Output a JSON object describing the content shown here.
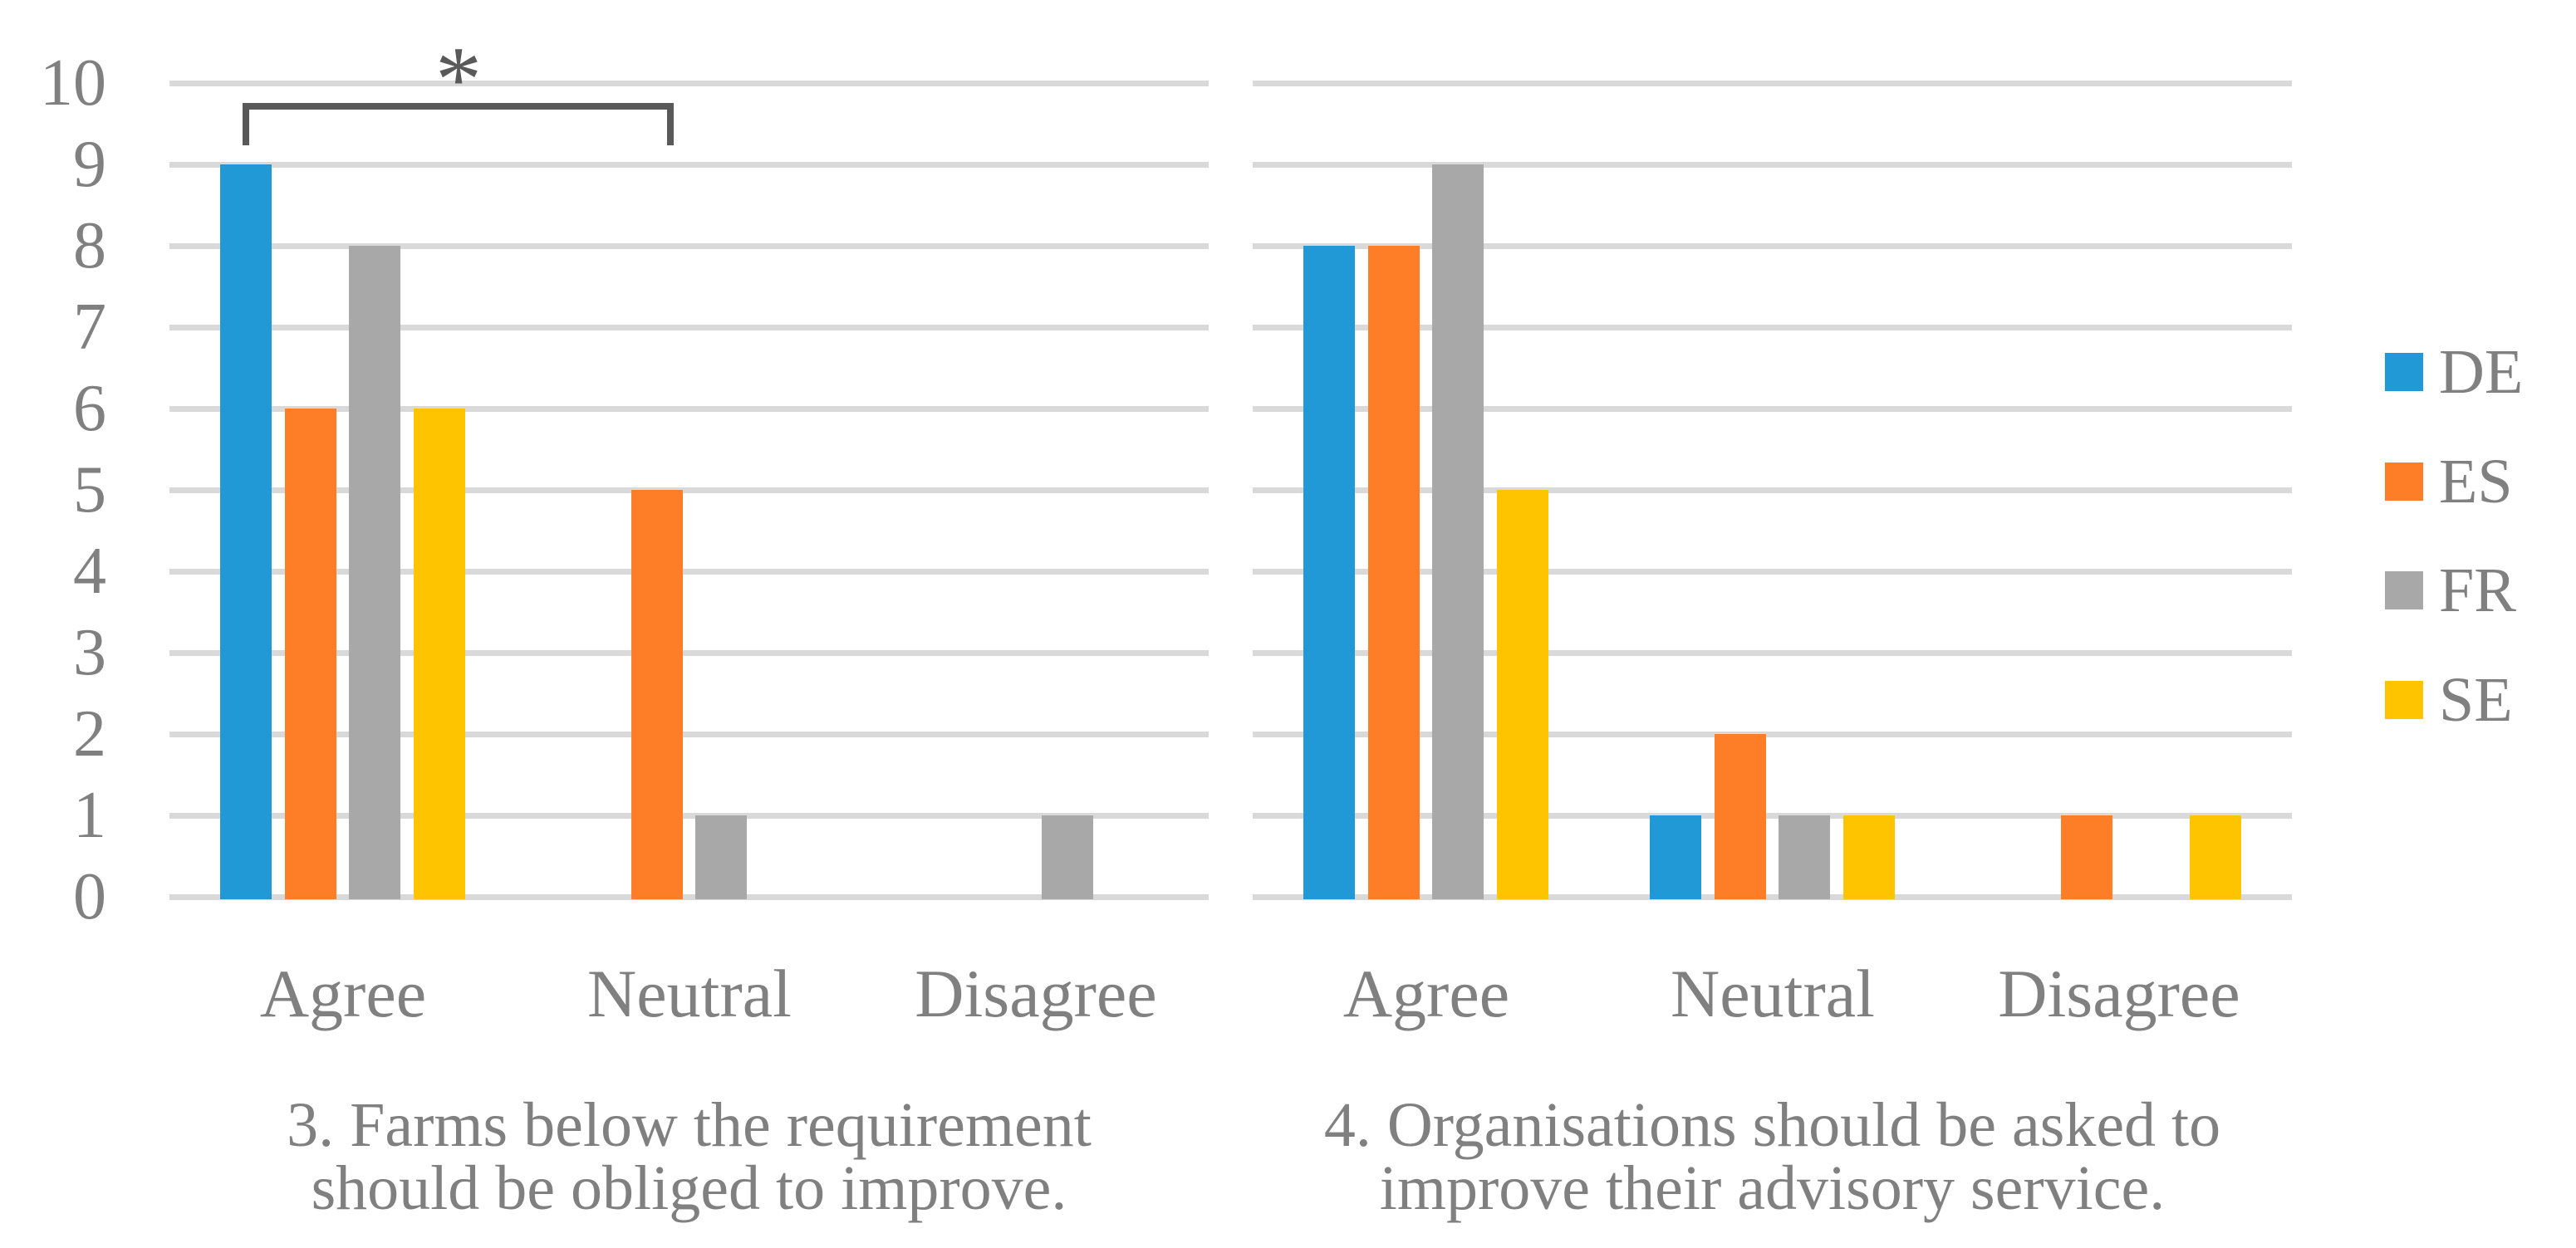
{
  "figure": {
    "background": "#FFFFFF",
    "text_color": "#808080",
    "gridline_color": "#D9D9D9",
    "bracket_color": "#595959"
  },
  "y_axis": {
    "ticks": [
      "0",
      "1",
      "2",
      "3",
      "4",
      "5",
      "6",
      "7",
      "8",
      "9",
      "10"
    ],
    "min": 0,
    "max": 10,
    "step": 1
  },
  "legend": {
    "position": "right",
    "items": [
      {
        "label": "DE",
        "color": "#2199D6"
      },
      {
        "label": "ES",
        "color": "#FD7E27"
      },
      {
        "label": "FR",
        "color": "#A8A8A8"
      },
      {
        "label": "SE",
        "color": "#FFC400"
      }
    ]
  },
  "chart_data": [
    {
      "type": "bar",
      "title": "3. Farms below the requirement should be obliged to improve.",
      "title_lines": [
        "3. Farms below the requirement",
        "should be obliged to improve."
      ],
      "categories": [
        "Agree",
        "Neutral",
        "Disagree"
      ],
      "series": [
        {
          "name": "DE",
          "color": "#2199D6",
          "values": [
            9,
            0,
            0
          ]
        },
        {
          "name": "ES",
          "color": "#FD7E27",
          "values": [
            6,
            5,
            0
          ]
        },
        {
          "name": "FR",
          "color": "#A8A8A8",
          "values": [
            8,
            1,
            1
          ]
        },
        {
          "name": "SE",
          "color": "#FFC400",
          "values": [
            6,
            0,
            0
          ]
        }
      ],
      "ylim": [
        0,
        10
      ],
      "grid": true,
      "annotation": {
        "type": "significance-bracket",
        "label": "*",
        "from": {
          "category": "Agree",
          "series": "DE"
        },
        "to": {
          "category": "Neutral",
          "series": "ES"
        }
      }
    },
    {
      "type": "bar",
      "title": "4. Organisations should be asked to improve their advisory service.",
      "title_lines": [
        "4. Organisations should be asked to",
        "improve their advisory service."
      ],
      "categories": [
        "Agree",
        "Neutral",
        "Disagree"
      ],
      "series": [
        {
          "name": "DE",
          "color": "#2199D6",
          "values": [
            8,
            1,
            0
          ]
        },
        {
          "name": "ES",
          "color": "#FD7E27",
          "values": [
            8,
            2,
            1
          ]
        },
        {
          "name": "FR",
          "color": "#A8A8A8",
          "values": [
            9,
            1,
            0
          ]
        },
        {
          "name": "SE",
          "color": "#FFC400",
          "values": [
            5,
            1,
            1
          ]
        }
      ],
      "ylim": [
        0,
        10
      ],
      "grid": true
    }
  ]
}
